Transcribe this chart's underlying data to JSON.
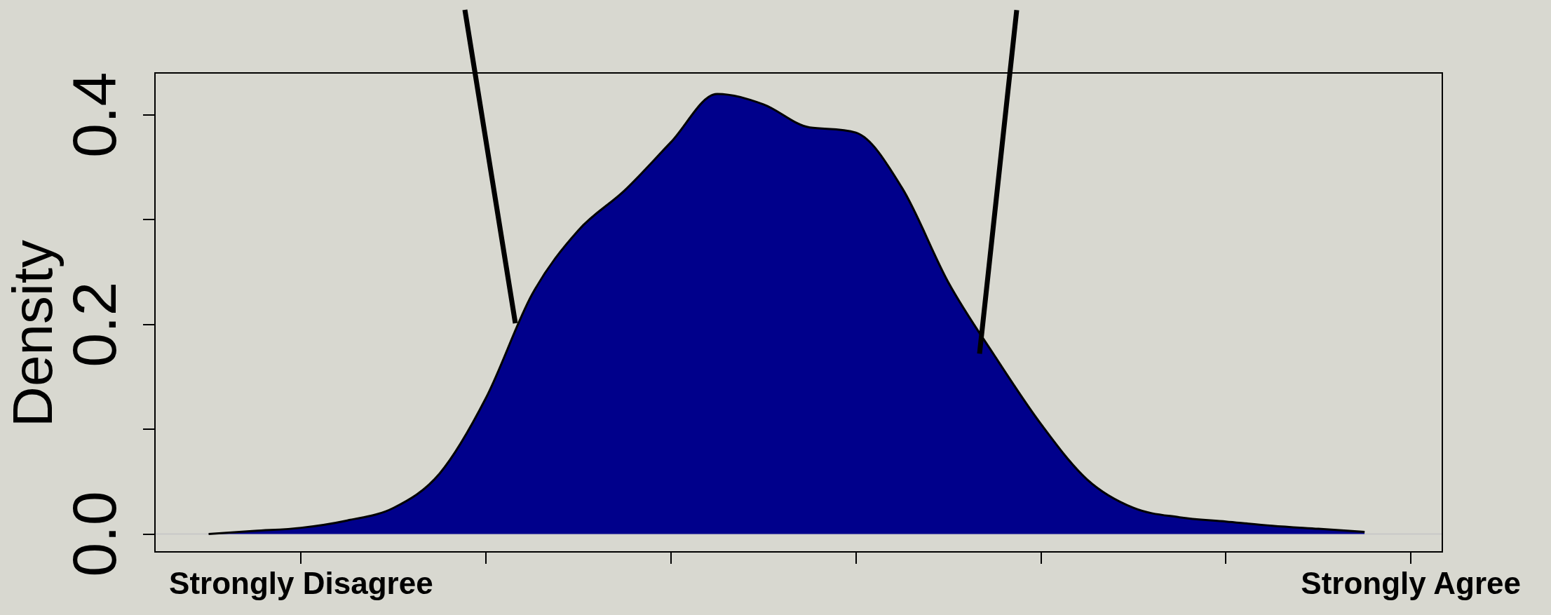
{
  "chart_data": {
    "type": "area",
    "ylabel": "Density",
    "categories": [
      null,
      null,
      "Strongly Disagree",
      null,
      null,
      null,
      null,
      null,
      null,
      null,
      null,
      null,
      null,
      null,
      null,
      null,
      null,
      null,
      null,
      null,
      null,
      null,
      null,
      null,
      null,
      null,
      "Strongly Agree"
    ],
    "series": [
      {
        "color": "#00008b",
        "values": [
          0,
          0.003,
          0.006,
          0.013,
          0.025,
          0.058,
          0.13,
          0.229,
          0.29,
          0.328,
          0.374,
          0.42,
          0.41,
          0.388,
          0.383,
          0.33,
          0.24,
          0.17,
          0.105,
          0.052,
          0.025,
          0.016,
          0.012,
          0.008,
          0.005,
          0.002,
          null
        ]
      }
    ],
    "ylim": [
      -0.017,
      0.44
    ],
    "yticks": [
      {
        "value": 0,
        "label": "0.0"
      },
      {
        "value": 0.1,
        "label": null
      },
      {
        "value": 0.2,
        "label": "0.2"
      },
      {
        "value": 0.3,
        "label": null
      },
      {
        "value": 0.4,
        "label": "0.4"
      }
    ],
    "ref_lines": [
      {
        "axis": "y",
        "value": 0,
        "color": "#c8c8c8"
      }
    ],
    "grid": false,
    "legend": false,
    "marker": "none",
    "line_style": "solid"
  }
}
